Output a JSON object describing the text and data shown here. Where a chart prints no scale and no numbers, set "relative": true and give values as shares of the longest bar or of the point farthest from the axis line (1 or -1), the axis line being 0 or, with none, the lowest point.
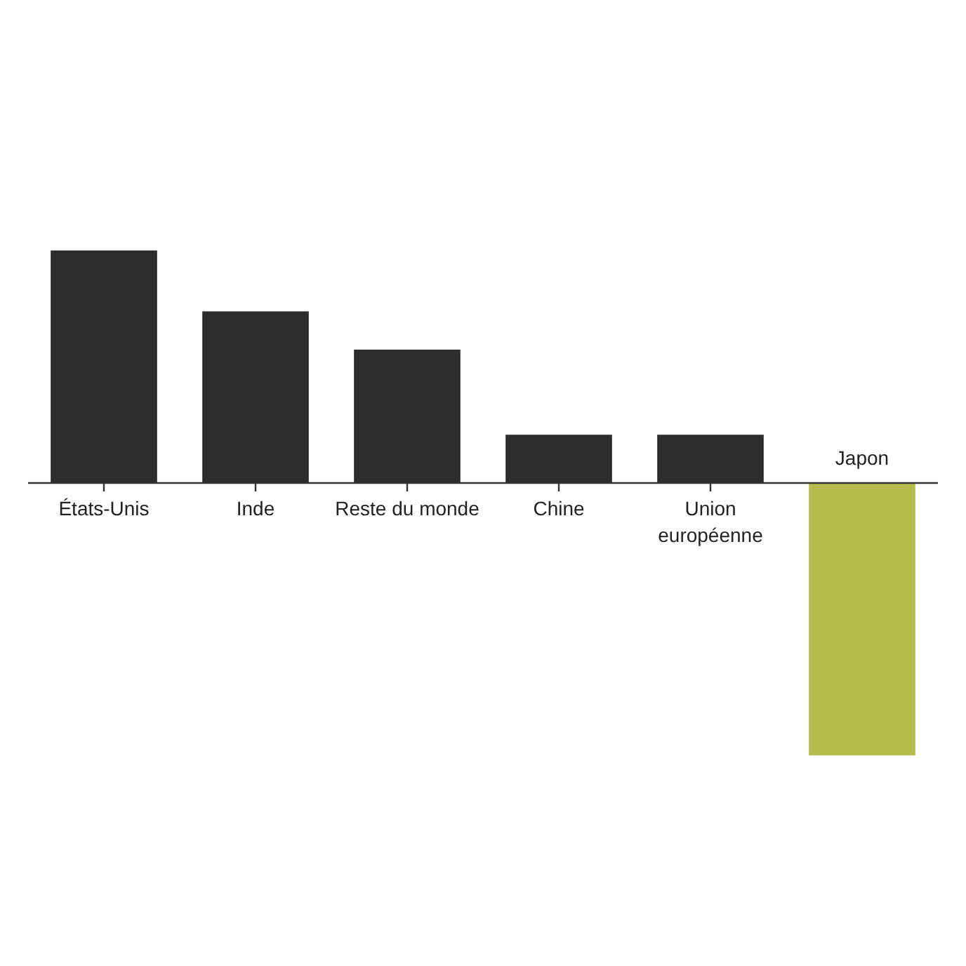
{
  "chart_data": {
    "type": "bar",
    "relative": true,
    "categories": [
      "États-Unis",
      "Inde",
      "Reste du monde",
      "Chine",
      "Union européenne",
      "Japon"
    ],
    "values": [
      0.854,
      0.63,
      0.49,
      0.177,
      0.177,
      -1
    ],
    "colors": [
      "#2d2d2d",
      "#2d2d2d",
      "#2d2d2d",
      "#2d2d2d",
      "#2d2d2d",
      "#b5bd4f"
    ]
  }
}
